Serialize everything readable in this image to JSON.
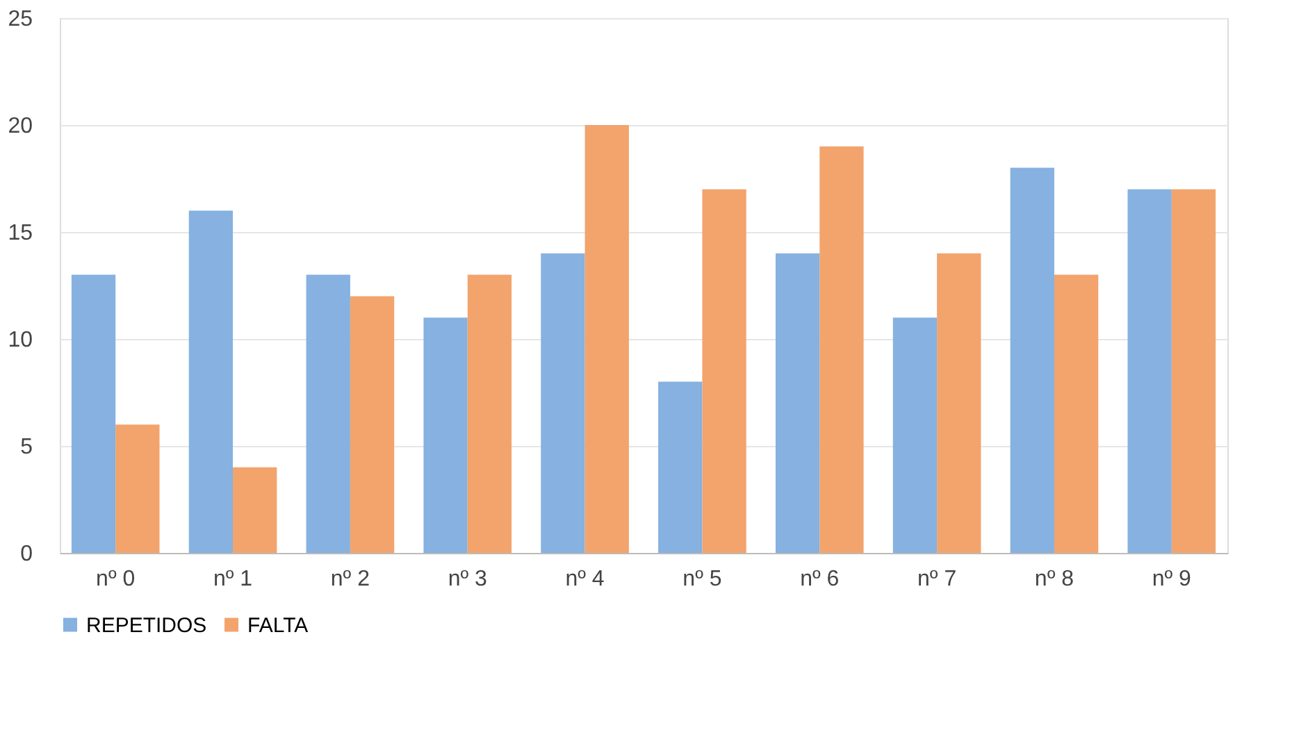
{
  "chart_data": {
    "type": "bar",
    "categories": [
      "nº 0",
      "nº 1",
      "nº 2",
      "nº 3",
      "nº 4",
      "nº 5",
      "nº 6",
      "nº 7",
      "nº 8",
      "nº 9"
    ],
    "series": [
      {
        "name": "REPETIDOS",
        "color": "#86b1e0",
        "values": [
          13,
          16,
          13,
          11,
          14,
          8,
          14,
          11,
          18,
          17
        ]
      },
      {
        "name": "FALTA",
        "color": "#f2a46c",
        "values": [
          6,
          4,
          12,
          13,
          20,
          17,
          19,
          14,
          13,
          17
        ]
      }
    ],
    "ylim": [
      0,
      25
    ],
    "yticks": [
      0,
      5,
      10,
      15,
      20,
      25
    ],
    "grid": "y",
    "legend": "bottom"
  }
}
